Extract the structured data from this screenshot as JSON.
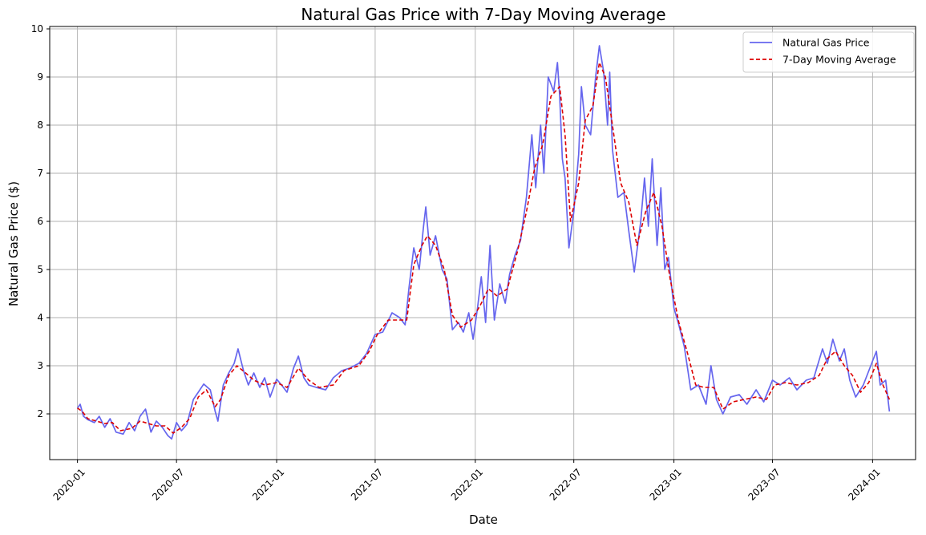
{
  "chart_data": {
    "type": "line",
    "title": "Natural Gas Price with 7-Day Moving Average",
    "xlabel": "Date",
    "ylabel": "Natural Gas Price ($)",
    "xlim": [
      "2019-11-11",
      "2024-03-20"
    ],
    "ylim": [
      1.05,
      10.05
    ],
    "grid": true,
    "legend_position": "top-right",
    "xticks": [
      "2020-01",
      "2020-07",
      "2021-01",
      "2021-07",
      "2022-01",
      "2022-07",
      "2023-01",
      "2023-07",
      "2024-01"
    ],
    "yticks": [
      2,
      3,
      4,
      5,
      6,
      7,
      8,
      9,
      10
    ],
    "series": [
      {
        "name": "Natural Gas Price",
        "color": "#6666ee",
        "style": "solid",
        "points": [
          [
            "2020-01-01",
            2.12
          ],
          [
            "2020-01-06",
            2.2
          ],
          [
            "2020-01-12",
            1.95
          ],
          [
            "2020-01-20",
            1.88
          ],
          [
            "2020-02-01",
            1.82
          ],
          [
            "2020-02-10",
            1.95
          ],
          [
            "2020-02-20",
            1.72
          ],
          [
            "2020-03-01",
            1.9
          ],
          [
            "2020-03-12",
            1.62
          ],
          [
            "2020-03-25",
            1.58
          ],
          [
            "2020-04-05",
            1.82
          ],
          [
            "2020-04-15",
            1.65
          ],
          [
            "2020-04-25",
            1.95
          ],
          [
            "2020-05-05",
            2.1
          ],
          [
            "2020-05-15",
            1.62
          ],
          [
            "2020-05-25",
            1.85
          ],
          [
            "2020-06-05",
            1.72
          ],
          [
            "2020-06-15",
            1.55
          ],
          [
            "2020-06-22",
            1.48
          ],
          [
            "2020-07-01",
            1.82
          ],
          [
            "2020-07-10",
            1.65
          ],
          [
            "2020-07-20",
            1.78
          ],
          [
            "2020-08-01",
            2.3
          ],
          [
            "2020-08-10",
            2.45
          ],
          [
            "2020-08-20",
            2.62
          ],
          [
            "2020-09-01",
            2.5
          ],
          [
            "2020-09-10",
            2.05
          ],
          [
            "2020-09-15",
            1.85
          ],
          [
            "2020-09-25",
            2.6
          ],
          [
            "2020-10-05",
            2.85
          ],
          [
            "2020-10-15",
            3.05
          ],
          [
            "2020-10-22",
            3.35
          ],
          [
            "2020-11-01",
            2.9
          ],
          [
            "2020-11-10",
            2.6
          ],
          [
            "2020-11-20",
            2.85
          ],
          [
            "2020-12-01",
            2.55
          ],
          [
            "2020-12-10",
            2.75
          ],
          [
            "2020-12-20",
            2.35
          ],
          [
            "2021-01-01",
            2.72
          ],
          [
            "2021-01-10",
            2.6
          ],
          [
            "2021-01-20",
            2.45
          ],
          [
            "2021-02-01",
            2.95
          ],
          [
            "2021-02-10",
            3.2
          ],
          [
            "2021-02-20",
            2.75
          ],
          [
            "2021-03-01",
            2.6
          ],
          [
            "2021-03-15",
            2.55
          ],
          [
            "2021-04-01",
            2.5
          ],
          [
            "2021-04-15",
            2.75
          ],
          [
            "2021-05-01",
            2.9
          ],
          [
            "2021-05-15",
            2.95
          ],
          [
            "2021-06-01",
            3.05
          ],
          [
            "2021-06-15",
            3.25
          ],
          [
            "2021-07-01",
            3.65
          ],
          [
            "2021-07-15",
            3.7
          ],
          [
            "2021-08-01",
            4.1
          ],
          [
            "2021-08-15",
            4.0
          ],
          [
            "2021-08-25",
            3.85
          ],
          [
            "2021-09-01",
            4.6
          ],
          [
            "2021-09-10",
            5.45
          ],
          [
            "2021-09-20",
            5.0
          ],
          [
            "2021-09-28",
            5.9
          ],
          [
            "2021-10-02",
            6.3
          ],
          [
            "2021-10-10",
            5.3
          ],
          [
            "2021-10-20",
            5.7
          ],
          [
            "2021-11-01",
            5.0
          ],
          [
            "2021-11-10",
            4.8
          ],
          [
            "2021-11-20",
            3.75
          ],
          [
            "2021-12-01",
            3.9
          ],
          [
            "2021-12-10",
            3.7
          ],
          [
            "2021-12-20",
            4.1
          ],
          [
            "2021-12-28",
            3.55
          ],
          [
            "2022-01-05",
            4.2
          ],
          [
            "2022-01-12",
            4.85
          ],
          [
            "2022-01-20",
            3.9
          ],
          [
            "2022-01-28",
            5.5
          ],
          [
            "2022-02-05",
            3.95
          ],
          [
            "2022-02-15",
            4.7
          ],
          [
            "2022-02-25",
            4.3
          ],
          [
            "2022-03-05",
            4.9
          ],
          [
            "2022-03-15",
            5.3
          ],
          [
            "2022-03-25",
            5.6
          ],
          [
            "2022-04-05",
            6.5
          ],
          [
            "2022-04-15",
            7.8
          ],
          [
            "2022-04-22",
            6.7
          ],
          [
            "2022-05-01",
            8.0
          ],
          [
            "2022-05-07",
            7.0
          ],
          [
            "2022-05-15",
            9.0
          ],
          [
            "2022-05-25",
            8.7
          ],
          [
            "2022-06-01",
            9.3
          ],
          [
            "2022-06-05",
            8.6
          ],
          [
            "2022-06-10",
            7.3
          ],
          [
            "2022-06-15",
            6.9
          ],
          [
            "2022-06-22",
            5.45
          ],
          [
            "2022-07-01",
            6.2
          ],
          [
            "2022-07-10",
            7.4
          ],
          [
            "2022-07-15",
            8.8
          ],
          [
            "2022-07-22",
            8.0
          ],
          [
            "2022-08-01",
            7.8
          ],
          [
            "2022-08-10",
            9.0
          ],
          [
            "2022-08-17",
            9.65
          ],
          [
            "2022-08-25",
            9.1
          ],
          [
            "2022-09-01",
            8.0
          ],
          [
            "2022-09-05",
            9.1
          ],
          [
            "2022-09-10",
            7.5
          ],
          [
            "2022-09-20",
            6.5
          ],
          [
            "2022-10-01",
            6.6
          ],
          [
            "2022-10-10",
            5.8
          ],
          [
            "2022-10-20",
            4.95
          ],
          [
            "2022-11-01",
            6.0
          ],
          [
            "2022-11-08",
            6.9
          ],
          [
            "2022-11-15",
            5.9
          ],
          [
            "2022-11-22",
            7.3
          ],
          [
            "2022-12-01",
            5.5
          ],
          [
            "2022-12-08",
            6.7
          ],
          [
            "2022-12-15",
            5.0
          ],
          [
            "2022-12-22",
            5.25
          ],
          [
            "2023-01-01",
            4.2
          ],
          [
            "2023-01-10",
            3.85
          ],
          [
            "2023-01-20",
            3.4
          ],
          [
            "2023-02-01",
            2.5
          ],
          [
            "2023-02-15",
            2.6
          ],
          [
            "2023-03-01",
            2.2
          ],
          [
            "2023-03-10",
            3.0
          ],
          [
            "2023-03-20",
            2.3
          ],
          [
            "2023-04-01",
            2.0
          ],
          [
            "2023-04-15",
            2.35
          ],
          [
            "2023-05-01",
            2.4
          ],
          [
            "2023-05-15",
            2.2
          ],
          [
            "2023-06-01",
            2.5
          ],
          [
            "2023-06-15",
            2.25
          ],
          [
            "2023-07-01",
            2.7
          ],
          [
            "2023-07-15",
            2.6
          ],
          [
            "2023-08-01",
            2.75
          ],
          [
            "2023-08-15",
            2.5
          ],
          [
            "2023-09-01",
            2.7
          ],
          [
            "2023-09-15",
            2.75
          ],
          [
            "2023-10-01",
            3.35
          ],
          [
            "2023-10-10",
            3.05
          ],
          [
            "2023-10-20",
            3.55
          ],
          [
            "2023-11-01",
            3.1
          ],
          [
            "2023-11-10",
            3.35
          ],
          [
            "2023-11-20",
            2.7
          ],
          [
            "2023-12-01",
            2.35
          ],
          [
            "2023-12-15",
            2.6
          ],
          [
            "2024-01-01",
            3.1
          ],
          [
            "2024-01-08",
            3.3
          ],
          [
            "2024-01-15",
            2.6
          ],
          [
            "2024-01-25",
            2.7
          ],
          [
            "2024-02-01",
            2.05
          ]
        ]
      },
      {
        "name": "7-Day Moving Average",
        "color": "#dd0000",
        "style": "dashed",
        "points": [
          [
            "2020-01-01",
            2.12
          ],
          [
            "2020-01-10",
            2.05
          ],
          [
            "2020-01-20",
            1.9
          ],
          [
            "2020-02-05",
            1.85
          ],
          [
            "2020-02-20",
            1.8
          ],
          [
            "2020-03-05",
            1.82
          ],
          [
            "2020-03-20",
            1.65
          ],
          [
            "2020-04-10",
            1.7
          ],
          [
            "2020-04-25",
            1.85
          ],
          [
            "2020-05-10",
            1.8
          ],
          [
            "2020-05-25",
            1.75
          ],
          [
            "2020-06-10",
            1.75
          ],
          [
            "2020-06-25",
            1.6
          ],
          [
            "2020-07-10",
            1.72
          ],
          [
            "2020-07-25",
            1.9
          ],
          [
            "2020-08-10",
            2.35
          ],
          [
            "2020-08-25",
            2.5
          ],
          [
            "2020-09-10",
            2.15
          ],
          [
            "2020-09-20",
            2.3
          ],
          [
            "2020-10-05",
            2.8
          ],
          [
            "2020-10-20",
            3.0
          ],
          [
            "2020-11-05",
            2.85
          ],
          [
            "2020-11-20",
            2.7
          ],
          [
            "2020-12-10",
            2.6
          ],
          [
            "2021-01-01",
            2.65
          ],
          [
            "2021-01-20",
            2.55
          ],
          [
            "2021-02-10",
            2.95
          ],
          [
            "2021-03-01",
            2.7
          ],
          [
            "2021-03-20",
            2.55
          ],
          [
            "2021-04-15",
            2.6
          ],
          [
            "2021-05-05",
            2.9
          ],
          [
            "2021-06-01",
            3.0
          ],
          [
            "2021-06-20",
            3.3
          ],
          [
            "2021-07-05",
            3.65
          ],
          [
            "2021-07-25",
            3.95
          ],
          [
            "2021-08-15",
            3.95
          ],
          [
            "2021-08-28",
            3.95
          ],
          [
            "2021-09-10",
            5.1
          ],
          [
            "2021-09-25",
            5.5
          ],
          [
            "2021-10-05",
            5.7
          ],
          [
            "2021-10-20",
            5.5
          ],
          [
            "2021-11-05",
            5.0
          ],
          [
            "2021-11-20",
            4.05
          ],
          [
            "2021-12-05",
            3.8
          ],
          [
            "2021-12-25",
            3.95
          ],
          [
            "2022-01-10",
            4.25
          ],
          [
            "2022-01-25",
            4.6
          ],
          [
            "2022-02-10",
            4.45
          ],
          [
            "2022-03-01",
            4.6
          ],
          [
            "2022-03-20",
            5.4
          ],
          [
            "2022-04-05",
            6.2
          ],
          [
            "2022-04-20",
            7.1
          ],
          [
            "2022-05-05",
            7.6
          ],
          [
            "2022-05-20",
            8.6
          ],
          [
            "2022-06-05",
            8.8
          ],
          [
            "2022-06-15",
            7.8
          ],
          [
            "2022-06-25",
            6.0
          ],
          [
            "2022-07-10",
            6.8
          ],
          [
            "2022-07-22",
            8.1
          ],
          [
            "2022-08-05",
            8.4
          ],
          [
            "2022-08-17",
            9.3
          ],
          [
            "2022-08-28",
            9.0
          ],
          [
            "2022-09-10",
            8.0
          ],
          [
            "2022-09-25",
            6.8
          ],
          [
            "2022-10-10",
            6.4
          ],
          [
            "2022-10-25",
            5.5
          ],
          [
            "2022-11-10",
            6.2
          ],
          [
            "2022-11-25",
            6.6
          ],
          [
            "2022-12-10",
            5.9
          ],
          [
            "2022-12-25",
            4.8
          ],
          [
            "2023-01-10",
            3.9
          ],
          [
            "2023-01-25",
            3.3
          ],
          [
            "2023-02-10",
            2.6
          ],
          [
            "2023-02-25",
            2.55
          ],
          [
            "2023-03-15",
            2.55
          ],
          [
            "2023-04-01",
            2.1
          ],
          [
            "2023-04-20",
            2.25
          ],
          [
            "2023-05-10",
            2.3
          ],
          [
            "2023-06-01",
            2.35
          ],
          [
            "2023-06-20",
            2.3
          ],
          [
            "2023-07-05",
            2.6
          ],
          [
            "2023-07-25",
            2.65
          ],
          [
            "2023-08-15",
            2.6
          ],
          [
            "2023-09-05",
            2.65
          ],
          [
            "2023-09-25",
            2.8
          ],
          [
            "2023-10-10",
            3.15
          ],
          [
            "2023-10-25",
            3.3
          ],
          [
            "2023-11-10",
            3.0
          ],
          [
            "2023-11-25",
            2.8
          ],
          [
            "2023-12-10",
            2.45
          ],
          [
            "2023-12-25",
            2.65
          ],
          [
            "2024-01-08",
            3.05
          ],
          [
            "2024-01-20",
            2.6
          ],
          [
            "2024-02-01",
            2.3
          ]
        ]
      }
    ]
  }
}
